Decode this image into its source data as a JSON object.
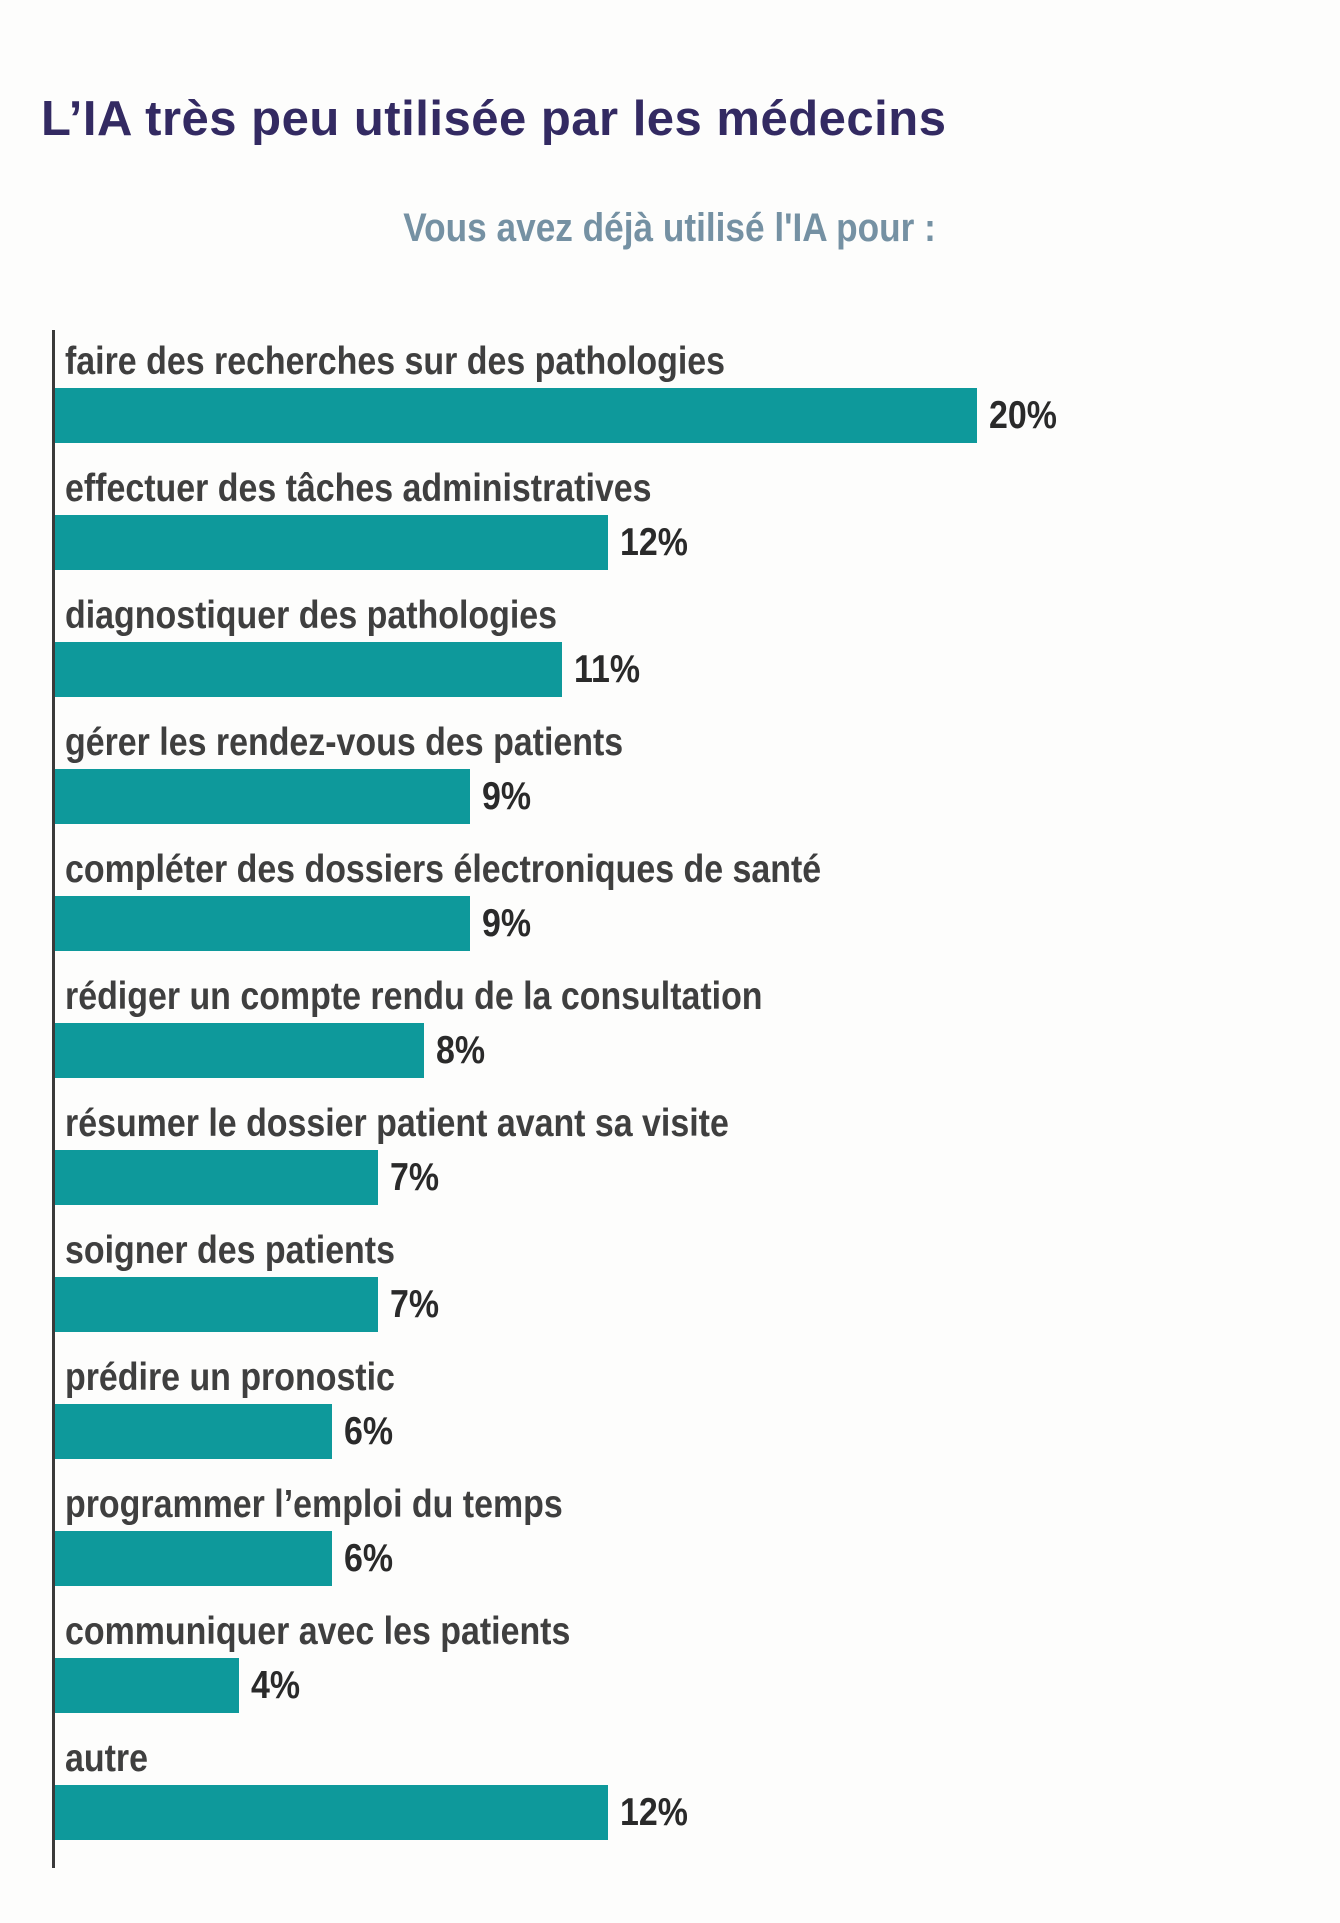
{
  "page": {
    "title": "L’IA très peu utilisée par les médecins",
    "subtitle": "Vous avez déjà utilisé l'IA pour :"
  },
  "colors": {
    "bar": "#0e999b",
    "title_text": "#332a62",
    "subtitle_text": "#7591a3",
    "axis_line": "#3a3a3a",
    "category_text": "#3f3f3f",
    "value_text": "#2a2a2a",
    "background": "#fdfdfc"
  },
  "chart_data": {
    "type": "bar",
    "orientation": "horizontal",
    "title": "Vous avez déjà utilisé l'IA pour :",
    "unit": "%",
    "categories": [
      "faire des recherches sur des pathologies",
      "effectuer des tâches administratives",
      "diagnostiquer des pathologies",
      "gérer les rendez-vous des patients",
      "compléter des dossiers électroniques de santé",
      "rédiger un compte rendu de la consultation",
      "résumer le dossier patient avant sa visite",
      "soigner des patients",
      "prédire un pronostic",
      "programmer l’emploi du temps",
      "communiquer avec les patients",
      "autre"
    ],
    "values": [
      20,
      12,
      11,
      9,
      9,
      8,
      7,
      7,
      6,
      6,
      4,
      12
    ],
    "value_labels": [
      "20%",
      "12%",
      "11%",
      "9%",
      "9%",
      "8%",
      "7%",
      "7%",
      "6%",
      "6%",
      "4%",
      "12%"
    ],
    "xlim": [
      0,
      20
    ],
    "grid": false,
    "legend": false,
    "value_labels_position": "right-of-bar"
  }
}
